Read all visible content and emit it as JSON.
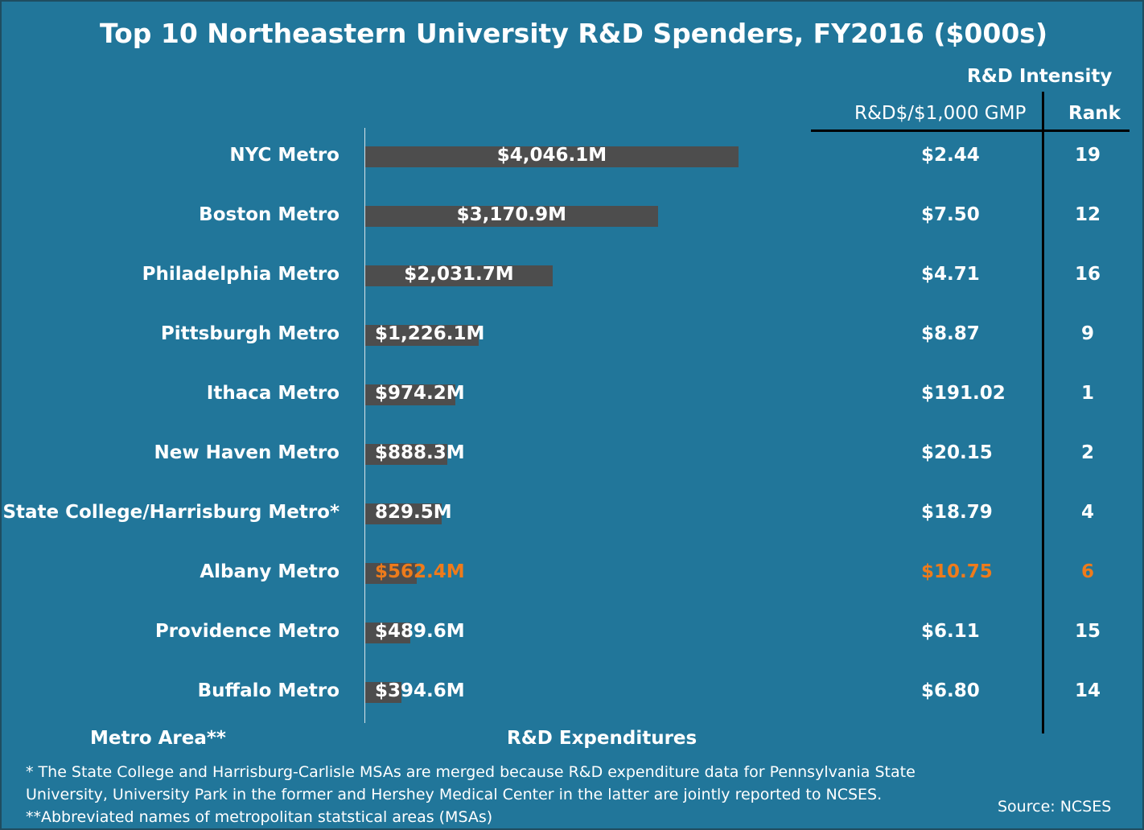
{
  "chart_data": {
    "type": "bar",
    "orientation": "horizontal",
    "title": "Top 10 Northeastern University R&D Spenders, FY2016 ($000s)",
    "xlabel": "R&D Expenditures",
    "ylabel": "Metro Area**",
    "xlim": [
      0,
      4046.1
    ],
    "grid": false,
    "categories": [
      "NYC Metro",
      "Boston Metro",
      "Philadelphia Metro",
      "Pittsburgh Metro",
      "Ithaca Metro",
      "New Haven Metro",
      "State College/Harrisburg Metro*",
      "Albany Metro",
      "Providence Metro",
      "Buffalo Metro"
    ],
    "values": [
      4046.1,
      3170.9,
      2031.7,
      1226.1,
      974.2,
      888.3,
      829.5,
      562.4,
      489.6,
      394.6
    ],
    "value_labels": [
      "$4,046.1M",
      "$3,170.9M",
      "$2,031.7M",
      "$1,226.1M",
      "$974.2M",
      "$888.3M",
      "829.5M",
      "$562.4M",
      "$489.6M",
      "$394.6M"
    ],
    "table": {
      "group_header": "R&D Intensity",
      "columns": [
        "R&D$/$1,000 GMP",
        "Rank"
      ],
      "gmp": [
        "$2.44",
        "$7.50",
        "$4.71",
        "$8.87",
        "$191.02",
        "$20.15",
        "$18.79",
        "$10.75",
        "$6.11",
        "$6.80"
      ],
      "rank": [
        "19",
        "12",
        "16",
        "9",
        "1",
        "2",
        "4",
        "6",
        "15",
        "14"
      ]
    },
    "highlight_index": 7,
    "colors": {
      "background": "#21769a",
      "bar": "#4d4d4d",
      "text": "#ffffff",
      "highlight": "#ee7b1b"
    }
  },
  "footnotes": [
    "* The State College and Harrisburg-Carlisle MSAs are merged because R&D expenditure data for Pennsylvania State",
    "University, University Park in the former and Hershey Medical Center in the latter are jointly reported to NCSES.",
    "**Abbreviated names of metropolitan statstical areas (MSAs)"
  ],
  "source": "Source: NCSES"
}
